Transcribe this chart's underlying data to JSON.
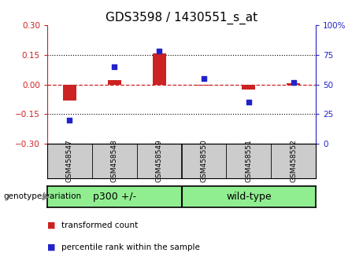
{
  "title": "GDS3598 / 1430551_s_at",
  "samples": [
    "GSM458547",
    "GSM458548",
    "GSM458549",
    "GSM458550",
    "GSM458551",
    "GSM458552"
  ],
  "red_values": [
    -0.082,
    0.022,
    0.155,
    -0.005,
    -0.025,
    0.005
  ],
  "blue_values_pct": [
    20,
    65,
    78,
    55,
    35,
    52
  ],
  "ylim_left": [
    -0.3,
    0.3
  ],
  "ylim_right": [
    0,
    100
  ],
  "yticks_left": [
    -0.3,
    -0.15,
    0,
    0.15,
    0.3
  ],
  "yticks_right": [
    0,
    25,
    50,
    75,
    100
  ],
  "hlines": [
    0.15,
    -0.15
  ],
  "groups": [
    {
      "label": "p300 +/-",
      "start": 0,
      "end": 2
    },
    {
      "label": "wild-type",
      "start": 3,
      "end": 5
    }
  ],
  "group_label": "genotype/variation",
  "bar_color": "#cc2222",
  "dot_color": "#2222cc",
  "zero_line_color": "#cc2222",
  "dotted_line_color": "#000000",
  "bg_plot": "#ffffff",
  "bg_sample": "#cccccc",
  "bg_group": "#90ee90",
  "legend_items": [
    {
      "label": "transformed count",
      "color": "#cc2222"
    },
    {
      "label": "percentile rank within the sample",
      "color": "#2222cc"
    }
  ],
  "title_fontsize": 11,
  "tick_fontsize": 7.5,
  "sample_fontsize": 6.5,
  "group_fontsize": 9,
  "legend_fontsize": 7.5,
  "bar_width": 0.3
}
